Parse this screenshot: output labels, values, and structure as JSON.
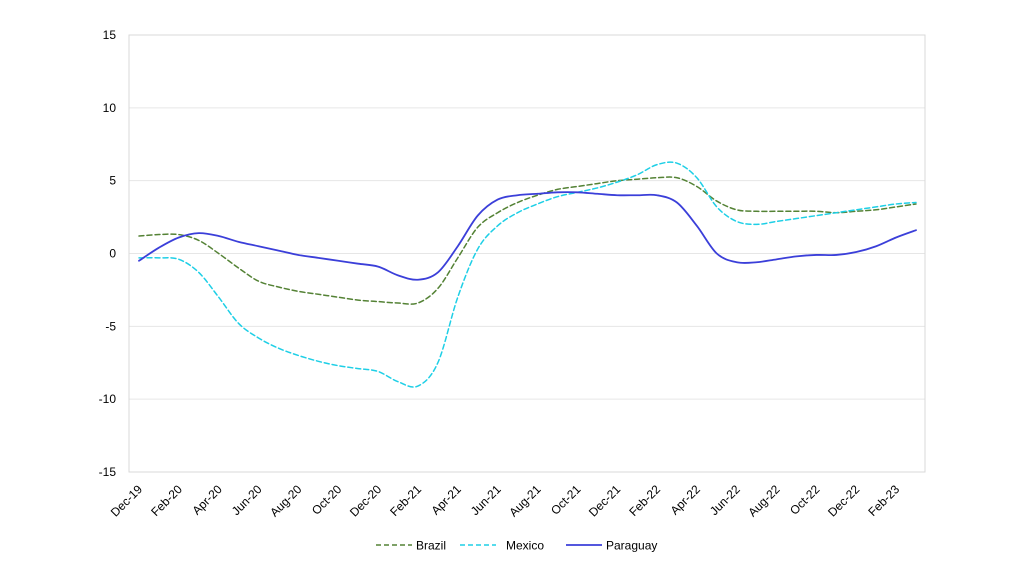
{
  "chart_data": {
    "type": "line",
    "title": "",
    "xlabel": "",
    "ylabel": "",
    "ylim": [
      -15,
      15
    ],
    "yticks": [
      "15",
      "10",
      "5",
      "0",
      "-5",
      "-10",
      "-15"
    ],
    "ytick_values": [
      15,
      10,
      5,
      0,
      -5,
      -10,
      -15
    ],
    "x": [
      "Dec-19",
      "Jan-20",
      "Feb-20",
      "Mar-20",
      "Apr-20",
      "May-20",
      "Jun-20",
      "Jul-20",
      "Aug-20",
      "Sep-20",
      "Oct-20",
      "Nov-20",
      "Dec-20",
      "Jan-21",
      "Feb-21",
      "Mar-21",
      "Apr-21",
      "May-21",
      "Jun-21",
      "Jul-21",
      "Aug-21",
      "Sep-21",
      "Oct-21",
      "Nov-21",
      "Dec-21",
      "Jan-22",
      "Feb-22",
      "Mar-22",
      "Apr-22",
      "May-22",
      "Jun-22",
      "Jul-22",
      "Aug-22",
      "Sep-22",
      "Oct-22",
      "Nov-22",
      "Dec-22",
      "Jan-23",
      "Feb-23",
      "Mar-23"
    ],
    "xtick_labels": [
      "Dec-19",
      "Feb-20",
      "Apr-20",
      "Jun-20",
      "Aug-20",
      "Oct-20",
      "Dec-20",
      "Feb-21",
      "Apr-21",
      "Jun-21",
      "Aug-21",
      "Oct-21",
      "Dec-21",
      "Feb-22",
      "Apr-22",
      "Jun-22",
      "Aug-22",
      "Oct-22",
      "Dec-22",
      "Feb-23"
    ],
    "grid": true,
    "legend_position": "bottom",
    "series": [
      {
        "name": "Brazil",
        "color": "#548235",
        "dash": "dashed",
        "values": [
          1.2,
          1.3,
          1.3,
          0.9,
          0.0,
          -1.0,
          -1.9,
          -2.3,
          -2.6,
          -2.8,
          -3.0,
          -3.2,
          -3.3,
          -3.4,
          -3.4,
          -2.4,
          -0.3,
          1.8,
          2.8,
          3.5,
          4.0,
          4.4,
          4.6,
          4.8,
          5.0,
          5.1,
          5.2,
          5.2,
          4.6,
          3.6,
          3.0,
          2.9,
          2.9,
          2.9,
          2.9,
          2.8,
          2.9,
          3.0,
          3.2,
          3.4
        ]
      },
      {
        "name": "Mexico",
        "color": "#1ECFE6",
        "dash": "dashed",
        "values": [
          -0.3,
          -0.3,
          -0.4,
          -1.3,
          -3.0,
          -4.8,
          -5.8,
          -6.5,
          -7.0,
          -7.4,
          -7.7,
          -7.9,
          -8.1,
          -8.8,
          -9.1,
          -7.5,
          -3.0,
          0.3,
          1.9,
          2.8,
          3.4,
          3.9,
          4.2,
          4.5,
          4.9,
          5.4,
          6.1,
          6.2,
          5.2,
          3.2,
          2.2,
          2.0,
          2.2,
          2.4,
          2.6,
          2.8,
          3.0,
          3.2,
          3.4,
          3.5
        ]
      },
      {
        "name": "Paraguay",
        "color": "#3B3FD9",
        "dash": "solid",
        "values": [
          -0.5,
          0.4,
          1.1,
          1.4,
          1.2,
          0.8,
          0.5,
          0.2,
          -0.1,
          -0.3,
          -0.5,
          -0.7,
          -0.9,
          -1.5,
          -1.8,
          -1.3,
          0.5,
          2.6,
          3.7,
          4.0,
          4.1,
          4.2,
          4.2,
          4.1,
          4.0,
          4.0,
          4.0,
          3.5,
          1.9,
          0.0,
          -0.6,
          -0.6,
          -0.4,
          -0.2,
          -0.1,
          -0.1,
          0.1,
          0.5,
          1.1,
          1.6
        ]
      }
    ]
  }
}
